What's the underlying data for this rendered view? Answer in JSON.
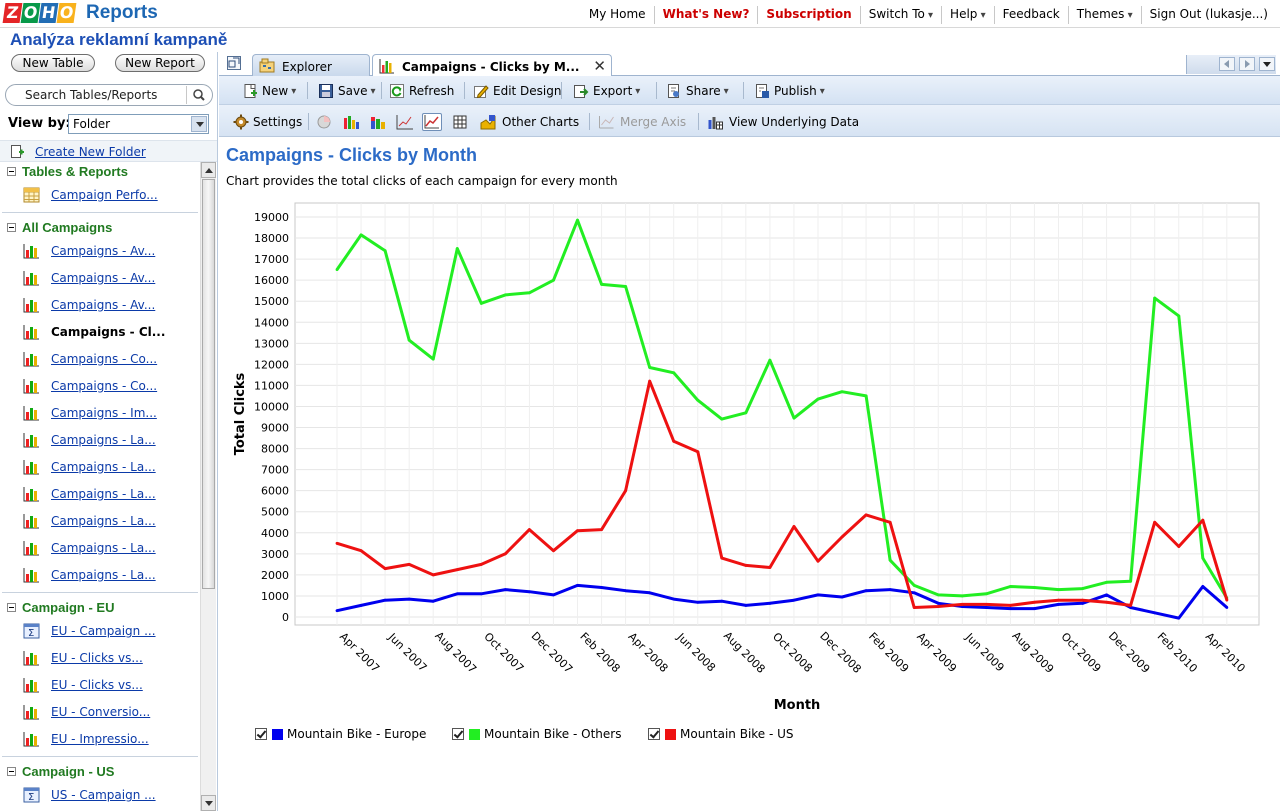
{
  "app": {
    "logo_letters": [
      "Z",
      "O",
      "H",
      "O"
    ],
    "logo_colors": [
      "#e42527",
      "#089949",
      "#226db4",
      "#f9b21d"
    ],
    "product": "Reports",
    "database_title": "Analýza reklamní kampaně"
  },
  "topnav": [
    {
      "label": "My Home",
      "style": "normal"
    },
    {
      "label": "What's New?",
      "style": "red"
    },
    {
      "label": "Subscription",
      "style": "red"
    },
    {
      "label": "Switch To",
      "style": "dropdown"
    },
    {
      "label": "Help",
      "style": "dropdown"
    },
    {
      "label": "Feedback",
      "style": "normal"
    },
    {
      "label": "Themes",
      "style": "dropdown"
    },
    {
      "label": "Sign Out (lukasje...)",
      "style": "normal"
    }
  ],
  "sidebar": {
    "new_table": "New Table",
    "new_report": "New Report",
    "search_placeholder": "Search Tables/Reports",
    "view_by_label": "View by:",
    "view_by_value": "Folder",
    "create_folder": "Create New Folder",
    "groups": [
      {
        "title": "Tables & Reports",
        "items": [
          {
            "label": "Campaign Perfo...",
            "icon": "table-icon"
          }
        ]
      },
      {
        "title": "All Campaigns",
        "items": [
          {
            "label": "Campaigns - Av...",
            "icon": "chart-icon"
          },
          {
            "label": "Campaigns - Av...",
            "icon": "chart-icon"
          },
          {
            "label": "Campaigns - Av...",
            "icon": "chart-icon"
          },
          {
            "label": "Campaigns - Cl...",
            "icon": "chart-icon",
            "selected": true
          },
          {
            "label": "Campaigns - Co...",
            "icon": "chart-icon"
          },
          {
            "label": "Campaigns - Co...",
            "icon": "chart-icon"
          },
          {
            "label": "Campaigns - Im...",
            "icon": "chart-icon"
          },
          {
            "label": "Campaigns - La...",
            "icon": "chart-icon"
          },
          {
            "label": "Campaigns - La...",
            "icon": "chart-icon"
          },
          {
            "label": "Campaigns - La...",
            "icon": "chart-icon"
          },
          {
            "label": "Campaigns - La...",
            "icon": "chart-icon"
          },
          {
            "label": "Campaigns - La...",
            "icon": "chart-icon"
          },
          {
            "label": "Campaigns - La...",
            "icon": "chart-icon"
          }
        ]
      },
      {
        "title": "Campaign - EU",
        "items": [
          {
            "label": "EU - Campaign ...",
            "icon": "pivot-icon"
          },
          {
            "label": "EU - Clicks vs...",
            "icon": "chart-icon"
          },
          {
            "label": "EU - Clicks vs...",
            "icon": "chart-icon"
          },
          {
            "label": "EU - Conversio...",
            "icon": "chart-icon"
          },
          {
            "label": "EU - Impressio...",
            "icon": "chart-icon"
          }
        ]
      },
      {
        "title": "Campaign - US",
        "items": [
          {
            "label": "US - Campaign ...",
            "icon": "pivot-icon"
          }
        ]
      }
    ]
  },
  "tabs": [
    {
      "label": "Explorer",
      "active": false,
      "icon": "explorer-icon"
    },
    {
      "label": "Campaigns - Clicks by M...",
      "active": true,
      "icon": "chart-icon"
    }
  ],
  "toolbar1": [
    {
      "label": "New",
      "icon": "new-icon",
      "dropdown": true
    },
    {
      "label": "Save",
      "icon": "save-icon",
      "dropdown": true
    },
    {
      "label": "Refresh",
      "icon": "refresh-icon",
      "dropdown": false
    },
    {
      "label": "Edit Design",
      "icon": "edit-design-icon",
      "dropdown": false
    },
    {
      "label": "Export",
      "icon": "export-icon",
      "dropdown": true
    },
    {
      "label": "Share",
      "icon": "share-icon",
      "dropdown": true
    },
    {
      "label": "Publish",
      "icon": "publish-icon",
      "dropdown": true
    }
  ],
  "toolbar2": {
    "settings": "Settings",
    "chart_types": [
      "pie-chart-icon",
      "bar-chart-icon",
      "stacked-bar-icon",
      "scatter-chart-icon",
      "line-chart-icon",
      "table-view-icon"
    ],
    "selected_chart_type": "line-chart-icon",
    "other_charts": "Other Charts",
    "merge_axis": "Merge Axis",
    "view_data": "View Underlying Data"
  },
  "report": {
    "title": "Campaigns - Clicks by Month",
    "description": "Chart provides the total clicks of each campaign for every month"
  },
  "chart_data": {
    "type": "line",
    "xlabel": "Month",
    "ylabel": "Total Clicks",
    "ylim": [
      0,
      19000
    ],
    "ytick_step": 1000,
    "grid": true,
    "legend_position": "bottom-left",
    "x": [
      "Mar 2007",
      "Apr 2007",
      "May 2007",
      "Jun 2007",
      "Jul 2007",
      "Aug 2007",
      "Sep 2007",
      "Oct 2007",
      "Nov 2007",
      "Dec 2007",
      "Jan 2008",
      "Feb 2008",
      "Mar 2008",
      "Apr 2008",
      "May 2008",
      "Jun 2008",
      "Jul 2008",
      "Aug 2008",
      "Sep 2008",
      "Oct 2008",
      "Nov 2008",
      "Dec 2008",
      "Jan 2009",
      "Feb 2009",
      "Mar 2009",
      "Apr 2009",
      "May 2009",
      "Jun 2009",
      "Jul 2009",
      "Aug 2009",
      "Sep 2009",
      "Oct 2009",
      "Nov 2009",
      "Dec 2009",
      "Jan 2010",
      "Feb 2010",
      "Mar 2010",
      "Apr 2010"
    ],
    "x_tick_labels": [
      "Apr 2007",
      "Jun 2007",
      "Aug 2007",
      "Oct 2007",
      "Dec 2007",
      "Feb 2008",
      "Apr 2008",
      "Jun 2008",
      "Aug 2008",
      "Oct 2008",
      "Dec 2008",
      "Feb 2009",
      "Apr 2009",
      "Jun 2009",
      "Aug 2009",
      "Oct 2009",
      "Dec 2009",
      "Feb 2010",
      "Apr 2010"
    ],
    "series": [
      {
        "name": "Mountain Bike - Europe",
        "color": "#0000ee",
        "values": [
          300,
          550,
          800,
          850,
          750,
          1100,
          1100,
          1300,
          1200,
          1050,
          1500,
          1400,
          1250,
          1150,
          850,
          700,
          750,
          550,
          650,
          800,
          1050,
          950,
          1250,
          1300,
          1150,
          650,
          500,
          450,
          400,
          400,
          600,
          650,
          1050,
          450,
          200,
          -50,
          1450,
          450
        ]
      },
      {
        "name": "Mountain Bike - Others",
        "color": "#22ee22",
        "values": [
          16500,
          18150,
          17400,
          13150,
          12250,
          17500,
          14900,
          15300,
          15400,
          16000,
          18850,
          15800,
          15700,
          11850,
          11600,
          10300,
          9400,
          9700,
          12200,
          9450,
          10350,
          10700,
          10500,
          2700,
          1500,
          1050,
          1000,
          1100,
          1450,
          1400,
          1300,
          1350,
          1650,
          1700,
          15150,
          14300,
          2800,
          900
        ]
      },
      {
        "name": "Mountain Bike - US",
        "color": "#ee1111",
        "values": [
          3500,
          3150,
          2300,
          2500,
          2000,
          2250,
          2500,
          3000,
          4150,
          3150,
          4100,
          4150,
          6000,
          11200,
          8350,
          7850,
          2800,
          2450,
          2350,
          4300,
          2650,
          3800,
          4850,
          4500,
          450,
          500,
          600,
          600,
          550,
          700,
          800,
          800,
          700,
          550,
          4500,
          3350,
          4600,
          800
        ]
      }
    ]
  }
}
